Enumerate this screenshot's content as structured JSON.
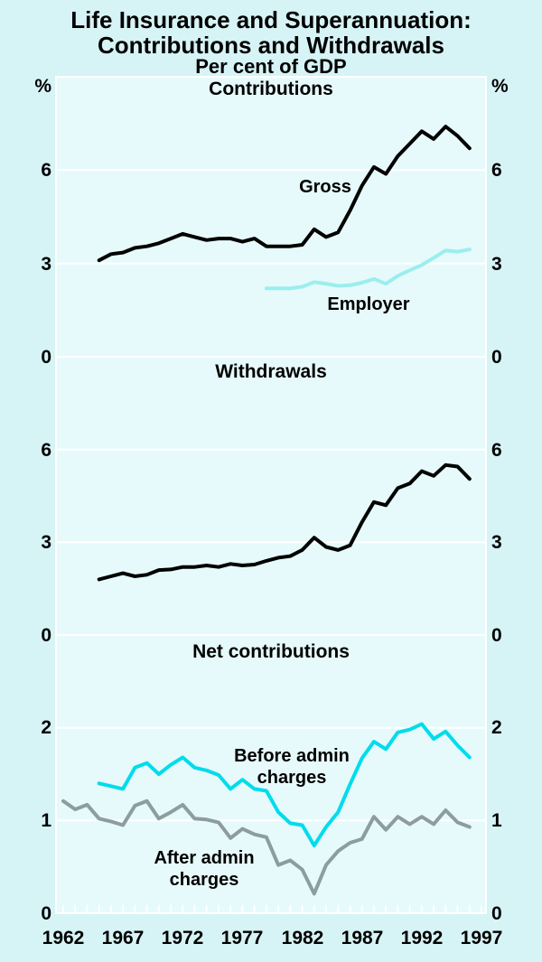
{
  "title": {
    "line1": "Life Insurance and Superannuation:",
    "line2": "Contributions and Withdrawals",
    "subtitle": "Per cent of GDP"
  },
  "axis": {
    "unit_left": "%",
    "unit_right": "%",
    "x_min": 1962,
    "x_max": 1997,
    "x_labels": [
      "1962",
      "1967",
      "1972",
      "1977",
      "1982",
      "1987",
      "1992",
      "1997"
    ]
  },
  "colors": {
    "background": "#d6f3f5",
    "plot_background": "#e6fafb",
    "grid": "#ffffff",
    "frame": "#ffffff",
    "gross": "#000000",
    "employer": "#9beeee",
    "withdrawals": "#000000",
    "before_admin": "#00dcec",
    "after_admin": "#8d9c9c"
  },
  "chart_data": [
    {
      "type": "line",
      "panel": "top",
      "title": "Contributions",
      "ylim": [
        0,
        9
      ],
      "yticks": [
        6,
        3,
        0
      ],
      "grid": true,
      "series": [
        {
          "id": "gross",
          "name": "Gross",
          "label": "Gross",
          "color": "#000000",
          "line_width": 4,
          "start_year": 1965,
          "values": [
            3.1,
            3.3,
            3.35,
            3.5,
            3.55,
            3.65,
            3.8,
            3.95,
            3.85,
            3.75,
            3.8,
            3.8,
            3.7,
            3.8,
            3.55,
            3.55,
            3.55,
            3.6,
            4.1,
            3.85,
            4.0,
            4.7,
            5.5,
            6.1,
            5.88,
            6.45,
            6.85,
            7.25,
            7.0,
            7.4,
            7.1,
            6.7
          ]
        },
        {
          "id": "employer",
          "name": "Employer",
          "label": "Employer",
          "color": "#9beeee",
          "line_width": 4,
          "start_year": 1979,
          "values": [
            2.2,
            2.2,
            2.2,
            2.25,
            2.4,
            2.35,
            2.28,
            2.3,
            2.38,
            2.5,
            2.35,
            2.6,
            2.78,
            2.95,
            3.18,
            3.42,
            3.38,
            3.45
          ]
        }
      ]
    },
    {
      "type": "line",
      "panel": "middle",
      "title": "Withdrawals",
      "ylim": [
        0,
        9
      ],
      "yticks": [
        6,
        3,
        0
      ],
      "grid": true,
      "series": [
        {
          "id": "withdrawals",
          "name": "Withdrawals",
          "color": "#000000",
          "line_width": 4,
          "start_year": 1965,
          "values": [
            1.8,
            1.9,
            2.0,
            1.9,
            1.95,
            2.1,
            2.12,
            2.2,
            2.2,
            2.25,
            2.2,
            2.3,
            2.25,
            2.28,
            2.4,
            2.5,
            2.55,
            2.75,
            3.15,
            2.85,
            2.75,
            2.9,
            3.65,
            4.3,
            4.2,
            4.75,
            4.9,
            5.3,
            5.15,
            5.5,
            5.45,
            5.05
          ]
        }
      ]
    },
    {
      "type": "line",
      "panel": "bottom",
      "title": "Net contributions",
      "ylim": [
        0,
        3
      ],
      "yticks": [
        2,
        1,
        0
      ],
      "grid": true,
      "series": [
        {
          "id": "before-admin-charges",
          "name": "Before admin charges",
          "label_lines": [
            "Before admin",
            "charges"
          ],
          "color": "#00dcec",
          "line_width": 4,
          "start_year": 1965,
          "values": [
            1.4,
            1.37,
            1.34,
            1.57,
            1.62,
            1.5,
            1.6,
            1.68,
            1.57,
            1.54,
            1.49,
            1.34,
            1.44,
            1.34,
            1.32,
            1.09,
            0.97,
            0.95,
            0.73,
            0.93,
            1.09,
            1.39,
            1.67,
            1.85,
            1.77,
            1.95,
            1.98,
            2.04,
            1.88,
            1.96,
            1.81,
            1.68
          ]
        },
        {
          "id": "after-admin-charges",
          "name": "After admin charges",
          "label_lines": [
            "After admin",
            "charges"
          ],
          "color": "#8d9c9c",
          "line_width": 4,
          "start_year": 1962,
          "values": [
            1.21,
            1.12,
            1.17,
            1.02,
            0.99,
            0.95,
            1.16,
            1.21,
            1.02,
            1.09,
            1.17,
            1.02,
            1.01,
            0.98,
            0.81,
            0.91,
            0.85,
            0.82,
            0.52,
            0.57,
            0.47,
            0.21,
            0.52,
            0.67,
            0.76,
            0.8,
            1.04,
            0.9,
            1.04,
            0.96,
            1.04,
            0.96,
            1.11,
            0.98,
            0.93
          ]
        }
      ]
    }
  ]
}
